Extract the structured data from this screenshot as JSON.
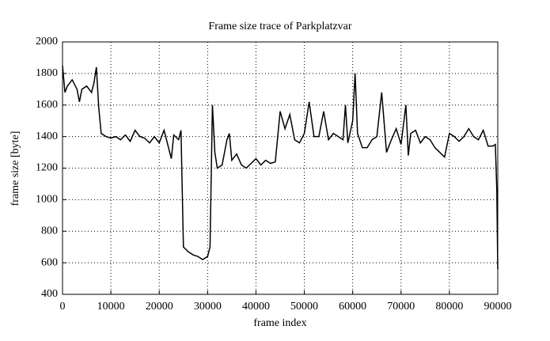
{
  "chart_data": {
    "type": "line",
    "title": "Frame size trace of Parkplatzvar",
    "x_label": "frame index",
    "y_label": "frame size [byte]",
    "x": [
      0,
      500,
      1000,
      2000,
      3000,
      3500,
      4000,
      5000,
      6000,
      6500,
      7000,
      7500,
      8000,
      9000,
      10000,
      11000,
      12000,
      13000,
      14000,
      15000,
      16000,
      17000,
      18000,
      19000,
      20000,
      21000,
      22000,
      22500,
      23000,
      24000,
      24500,
      25000,
      26000,
      27000,
      28000,
      29000,
      30000,
      30500,
      31000,
      31500,
      32000,
      33000,
      34000,
      34500,
      35000,
      36000,
      37000,
      38000,
      39000,
      40000,
      41000,
      42000,
      43000,
      44000,
      45000,
      46000,
      47000,
      48000,
      49000,
      50000,
      51000,
      52000,
      53000,
      54000,
      55000,
      56000,
      57000,
      58000,
      58500,
      59000,
      60000,
      60500,
      61000,
      62000,
      63000,
      64000,
      65000,
      66000,
      67000,
      68000,
      69000,
      70000,
      71000,
      71500,
      72000,
      73000,
      74000,
      75000,
      76000,
      77000,
      78000,
      79000,
      80000,
      81000,
      82000,
      83000,
      84000,
      85000,
      86000,
      87000,
      88000,
      89000,
      89500,
      89800,
      90000
    ],
    "series": [
      {
        "color": "#000000",
        "values": [
          1850,
          1680,
          1720,
          1760,
          1700,
          1620,
          1700,
          1720,
          1680,
          1740,
          1840,
          1580,
          1420,
          1400,
          1390,
          1400,
          1380,
          1410,
          1370,
          1440,
          1400,
          1390,
          1360,
          1400,
          1360,
          1440,
          1320,
          1260,
          1410,
          1380,
          1440,
          700,
          670,
          650,
          640,
          620,
          640,
          700,
          1600,
          1300,
          1200,
          1220,
          1380,
          1420,
          1250,
          1290,
          1220,
          1200,
          1230,
          1260,
          1220,
          1250,
          1230,
          1240,
          1560,
          1450,
          1540,
          1380,
          1360,
          1420,
          1620,
          1400,
          1400,
          1560,
          1380,
          1420,
          1400,
          1380,
          1600,
          1360,
          1500,
          1800,
          1420,
          1330,
          1330,
          1380,
          1400,
          1680,
          1300,
          1380,
          1450,
          1350,
          1600,
          1280,
          1420,
          1440,
          1360,
          1400,
          1380,
          1330,
          1300,
          1270,
          1420,
          1400,
          1370,
          1400,
          1450,
          1400,
          1380,
          1440,
          1340,
          1340,
          1350,
          1060,
          560
        ]
      }
    ],
    "xlim": [
      0,
      90000
    ],
    "ylim": [
      400,
      2000
    ],
    "xticks": [
      0,
      10000,
      20000,
      30000,
      40000,
      50000,
      60000,
      70000,
      80000,
      90000
    ],
    "yticks": [
      400,
      600,
      800,
      1000,
      1200,
      1400,
      1600,
      1800,
      2000
    ],
    "grid": true
  }
}
